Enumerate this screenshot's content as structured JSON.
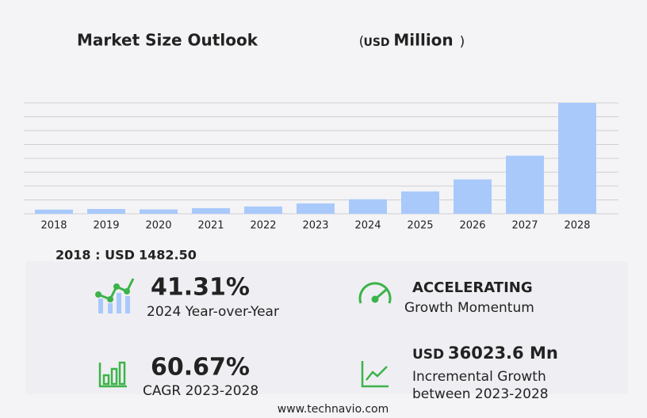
{
  "chart_data": {
    "type": "bar",
    "title": "Market Size Outlook",
    "title_unit_parts": [
      "(",
      "USD",
      "Million",
      ")"
    ],
    "categories": [
      "2018",
      "2019",
      "2020",
      "2021",
      "2022",
      "2023",
      "2024",
      "2025",
      "2026",
      "2027",
      "2028"
    ],
    "values": [
      1482.5,
      1700,
      1550,
      2000,
      2600,
      3700,
      5200,
      8000,
      12300,
      20800,
      39700
    ],
    "color": "#a9c9fb",
    "ylim": [
      0,
      39700
    ],
    "yticks": [
      0,
      4962.5,
      9925,
      14887.5,
      19850,
      24812.5,
      29775,
      34737.5,
      39700
    ],
    "grid": true
  },
  "summary": {
    "label": "2018 : USD",
    "value": "1482.50"
  },
  "cards": [
    {
      "value": "41.31%",
      "label": "2024 Year-over-Year"
    },
    {
      "value": "ACCELERATING",
      "label": "Growth Momentum"
    },
    {
      "value": "60.67%",
      "label": "CAGR 2023-2028"
    },
    {
      "prefix": "USD",
      "value": "36023.6 Mn",
      "label": "Incremental Growth",
      "label2": "between 2023-2028"
    }
  ],
  "footer": "www.technavio.com"
}
